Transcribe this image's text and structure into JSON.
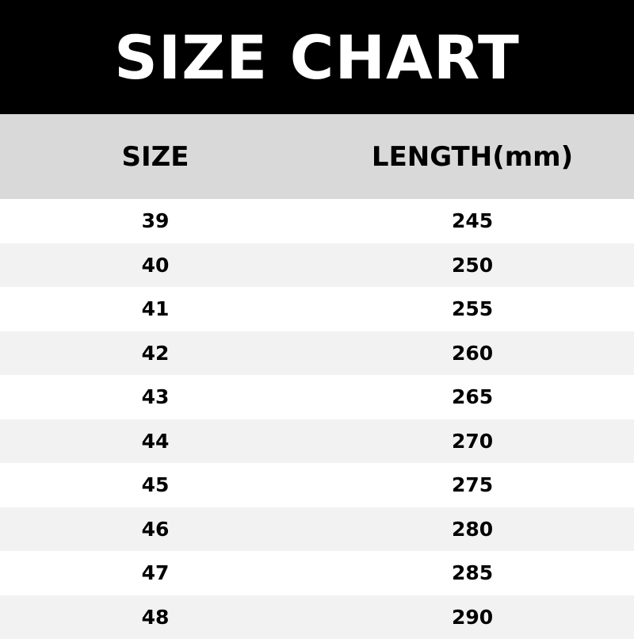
{
  "title": "SIZE CHART",
  "columns": [
    "SIZE",
    "LENGTH(mm)"
  ],
  "rows": [
    [
      "39",
      "245"
    ],
    [
      "40",
      "250"
    ],
    [
      "41",
      "255"
    ],
    [
      "42",
      "260"
    ],
    [
      "43",
      "265"
    ],
    [
      "44",
      "270"
    ],
    [
      "45",
      "275"
    ],
    [
      "46",
      "280"
    ],
    [
      "47",
      "285"
    ],
    [
      "48",
      "290"
    ]
  ],
  "colors": {
    "title_bg": "#000000",
    "header_bg": "#d9d9d9",
    "row_alt": "#f2f2f2",
    "row": "#ffffff"
  }
}
